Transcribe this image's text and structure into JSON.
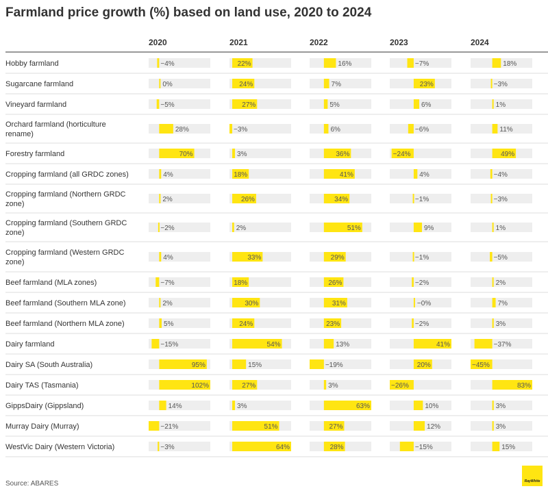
{
  "title": "Farmland price growth (%) based on land use, 2020 to 2024",
  "source": "Source: ABARES",
  "logo_text": "RayWhite",
  "colors": {
    "bar": "#ffe512",
    "track": "#eeeeee",
    "text": "#333333",
    "value_text": "#555555",
    "divider": "#dddddd",
    "header_rule": "#333333"
  },
  "chart_data": {
    "type": "bar",
    "title": "Farmland price growth (%) based on land use, 2020 to 2024",
    "columns": [
      "2020",
      "2021",
      "2022",
      "2023",
      "2024"
    ],
    "rows": [
      {
        "label": [
          "Hobby farmland"
        ],
        "values": [
          -4,
          22,
          16,
          -7,
          18
        ]
      },
      {
        "label": [
          "Sugarcane farmland"
        ],
        "values": [
          0,
          24,
          7,
          23,
          -3
        ]
      },
      {
        "label": [
          "Vineyard farmland"
        ],
        "values": [
          -5,
          27,
          5,
          6,
          1
        ]
      },
      {
        "label": [
          "Orchard farmland (horticulture",
          "rename)"
        ],
        "values": [
          28,
          -3,
          6,
          -6,
          11
        ]
      },
      {
        "label": [
          "Forestry farmland"
        ],
        "values": [
          70,
          3,
          36,
          -24,
          49
        ]
      },
      {
        "label": [
          "Cropping farmland (all GRDC zones)"
        ],
        "values": [
          4,
          18,
          41,
          4,
          -4
        ]
      },
      {
        "label": [
          "Cropping farmland (Northern GRDC",
          "zone)"
        ],
        "values": [
          2,
          26,
          34,
          -1,
          -3
        ]
      },
      {
        "label": [
          "Cropping farmland (Southern GRDC",
          "zone)"
        ],
        "values": [
          -2,
          2,
          51,
          9,
          1
        ]
      },
      {
        "label": [
          "Cropping farmland (Western GRDC",
          "zone)"
        ],
        "values": [
          4,
          33,
          29,
          -1,
          -5
        ]
      },
      {
        "label": [
          "Beef farmland (MLA zones)"
        ],
        "values": [
          -7,
          18,
          26,
          -2,
          2
        ]
      },
      {
        "label": [
          "Beef farmland (Southern MLA zone)"
        ],
        "values": [
          2,
          30,
          31,
          0,
          7
        ]
      },
      {
        "label": [
          "Beef farmland (Northern MLA zone)"
        ],
        "values": [
          5,
          24,
          23,
          -2,
          3
        ]
      },
      {
        "label": [
          "Dairy farmland"
        ],
        "values": [
          -15,
          54,
          13,
          41,
          -37
        ]
      },
      {
        "label": [
          "Dairy SA (South Australia)"
        ],
        "values": [
          95,
          15,
          -19,
          20,
          -45
        ]
      },
      {
        "label": [
          "Dairy TAS (Tasmania)"
        ],
        "values": [
          102,
          27,
          3,
          -26,
          83
        ]
      },
      {
        "label": [
          "GippsDairy (Gippsland)"
        ],
        "values": [
          14,
          3,
          63,
          10,
          3
        ]
      },
      {
        "label": [
          "Murray Dairy (Murray)"
        ],
        "values": [
          -21,
          51,
          27,
          12,
          3
        ]
      },
      {
        "label": [
          "WestVic Dairy (Western Victoria)"
        ],
        "values": [
          -3,
          64,
          28,
          -15,
          15
        ]
      }
    ],
    "column_ranges": [
      [
        -21,
        102
      ],
      [
        -3,
        64
      ],
      [
        -19,
        63
      ],
      [
        -26,
        41
      ],
      [
        -45,
        83
      ]
    ],
    "value_suffix": "%",
    "xlabel": "",
    "ylabel": ""
  }
}
